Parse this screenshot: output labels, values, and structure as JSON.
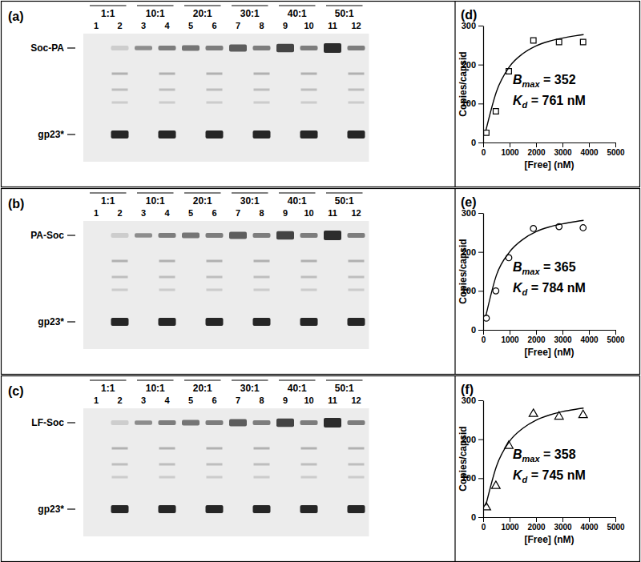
{
  "gels": [
    {
      "label": "(a)",
      "ratios": [
        "1:1",
        "10:1",
        "20:1",
        "30:1",
        "40:1",
        "50:1"
      ],
      "lanes": [
        "1",
        "2",
        "3",
        "4",
        "5",
        "6",
        "7",
        "8",
        "9",
        "10",
        "11",
        "12"
      ],
      "bands": [
        "Soc-PA",
        "gp23*"
      ]
    },
    {
      "label": "(b)",
      "ratios": [
        "1:1",
        "10:1",
        "20:1",
        "30:1",
        "40:1",
        "50:1"
      ],
      "lanes": [
        "1",
        "2",
        "3",
        "4",
        "5",
        "6",
        "7",
        "8",
        "9",
        "10",
        "11",
        "12"
      ],
      "bands": [
        "PA-Soc",
        "gp23*"
      ]
    },
    {
      "label": "(c)",
      "ratios": [
        "1:1",
        "10:1",
        "20:1",
        "30:1",
        "40:1",
        "50:1"
      ],
      "lanes": [
        "1",
        "2",
        "3",
        "4",
        "5",
        "6",
        "7",
        "8",
        "9",
        "10",
        "11",
        "12"
      ],
      "bands": [
        "LF-Soc",
        "gp23*"
      ]
    }
  ],
  "chart_data": [
    {
      "type": "scatter",
      "title": "(d)",
      "x_label": "[Free] (nM)",
      "y_label": "Copies/capsid",
      "xlim": [
        0,
        5000
      ],
      "ylim": [
        0,
        300
      ],
      "xticks": [
        0,
        1000,
        2000,
        3000,
        4000,
        5000
      ],
      "yticks": [
        0,
        100,
        200,
        300
      ],
      "series": [
        {
          "type": "scatter",
          "marker": "square",
          "color": "#000000",
          "x": [
            120,
            480,
            970,
            1900,
            2870,
            3780
          ],
          "values": [
            25,
            80,
            183,
            262,
            258,
            258
          ]
        },
        {
          "type": "line",
          "color": "#000000",
          "x": [
            100,
            500,
            1000,
            1500,
            2000,
            2500,
            3000,
            3500,
            3800
          ],
          "values": [
            30,
            130,
            195,
            228,
            248,
            260,
            268,
            274,
            277
          ]
        }
      ],
      "annotations": [
        {
          "parts": [
            {
              "text": "B"
            },
            {
              "text": "max",
              "sub": true
            },
            {
              "text": " = 352"
            }
          ]
        },
        {
          "parts": [
            {
              "text": "K"
            },
            {
              "text": "d",
              "sub": true
            },
            {
              "text": " = 761 nM"
            }
          ]
        }
      ]
    },
    {
      "type": "scatter",
      "title": "(e)",
      "x_label": "[Free] (nM)",
      "y_label": "Copies/capsid",
      "xlim": [
        0,
        5000
      ],
      "ylim": [
        0,
        300
      ],
      "xticks": [
        0,
        1000,
        2000,
        3000,
        4000,
        5000
      ],
      "yticks": [
        0,
        100,
        200,
        300
      ],
      "series": [
        {
          "type": "scatter",
          "marker": "circle",
          "color": "#000000",
          "x": [
            120,
            480,
            970,
            1900,
            2870,
            3780
          ],
          "values": [
            30,
            100,
            185,
            260,
            265,
            262
          ]
        },
        {
          "type": "line",
          "color": "#000000",
          "x": [
            100,
            500,
            1000,
            1500,
            2000,
            2500,
            3000,
            3500,
            3800
          ],
          "values": [
            35,
            140,
            200,
            232,
            252,
            264,
            272,
            278,
            281
          ]
        }
      ],
      "annotations": [
        {
          "parts": [
            {
              "text": "B"
            },
            {
              "text": "max",
              "sub": true
            },
            {
              "text": " = 365"
            }
          ]
        },
        {
          "parts": [
            {
              "text": "K"
            },
            {
              "text": "d",
              "sub": true
            },
            {
              "text": " = 784 nM"
            }
          ]
        }
      ]
    },
    {
      "type": "scatter",
      "title": "(f)",
      "x_label": "[Free] (nM)",
      "y_label": "Copies/capsid",
      "xlim": [
        0,
        5000
      ],
      "ylim": [
        0,
        300
      ],
      "xticks": [
        0,
        1000,
        2000,
        3000,
        4000,
        5000
      ],
      "yticks": [
        0,
        100,
        200,
        300
      ],
      "series": [
        {
          "type": "scatter",
          "marker": "triangle",
          "color": "#000000",
          "x": [
            120,
            480,
            970,
            1900,
            2870,
            3780
          ],
          "values": [
            25,
            80,
            183,
            265,
            258,
            262
          ]
        },
        {
          "type": "line",
          "color": "#000000",
          "x": [
            100,
            500,
            1000,
            1500,
            2000,
            2500,
            3000,
            3500,
            3800
          ],
          "values": [
            30,
            130,
            195,
            228,
            249,
            262,
            271,
            277,
            280
          ]
        }
      ],
      "annotations": [
        {
          "parts": [
            {
              "text": "B"
            },
            {
              "text": "max",
              "sub": true
            },
            {
              "text": " = 358"
            }
          ]
        },
        {
          "parts": [
            {
              "text": "K"
            },
            {
              "text": "d",
              "sub": true
            },
            {
              "text": " = 745 nM"
            }
          ]
        }
      ]
    }
  ]
}
